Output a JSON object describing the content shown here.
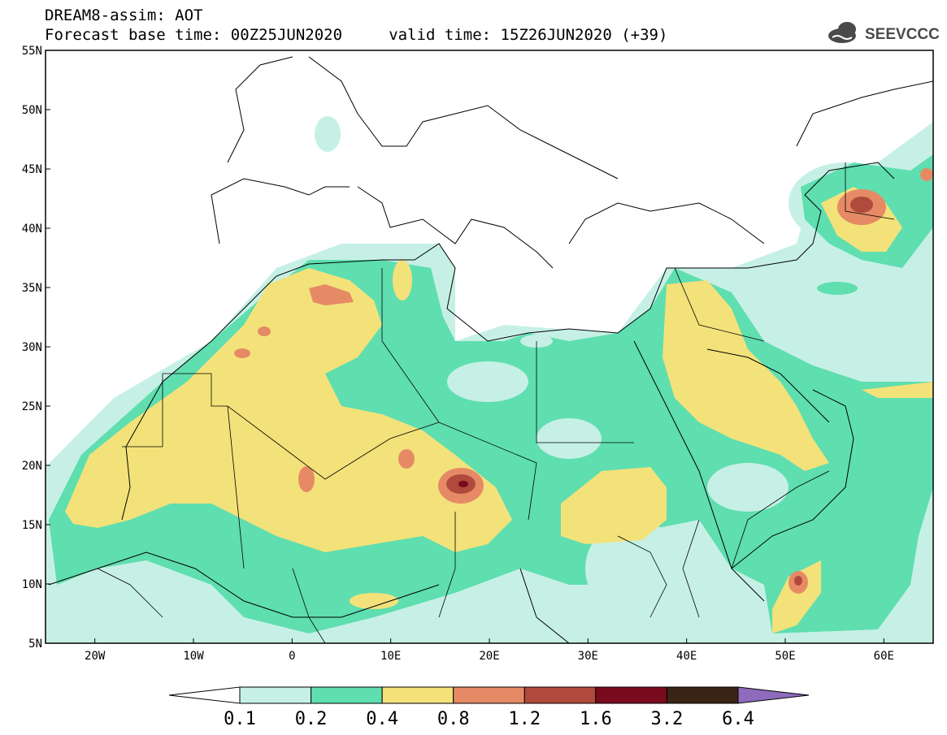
{
  "header": {
    "title_line1": "DREAM8-assim: AOT",
    "title_line2": "Forecast base time: 00Z25JUN2020     valid time: 15Z26JUN2020 (+39)",
    "logo_text": "SEEVCCC"
  },
  "map": {
    "lat_labels": [
      "55N",
      "50N",
      "45N",
      "40N",
      "35N",
      "30N",
      "25N",
      "20N",
      "15N",
      "10N",
      "5N"
    ],
    "lon_labels": [
      "20W",
      "10W",
      "0",
      "10E",
      "20E",
      "30E",
      "40E",
      "50E",
      "60E"
    ],
    "lon_range": [
      -25,
      65
    ],
    "lat_range": [
      5,
      55
    ],
    "colors": {
      "c1": "#c6f0e6",
      "c2": "#5fdeb0",
      "c3": "#f3e27a",
      "c4": "#e68a66",
      "c5": "#b04a3c",
      "c6": "#7a0a1e",
      "coast": "#000000"
    }
  },
  "colorbar": {
    "labels": [
      "0.1",
      "0.2",
      "0.4",
      "0.8",
      "1.2",
      "1.6",
      "3.2",
      "6.4"
    ],
    "colors": [
      "#ffffff",
      "#c6f0e6",
      "#5fdeb0",
      "#f3e27a",
      "#e68a66",
      "#b04a3c",
      "#7a0a1e",
      "#3b2415",
      "#8e6bbd"
    ]
  }
}
